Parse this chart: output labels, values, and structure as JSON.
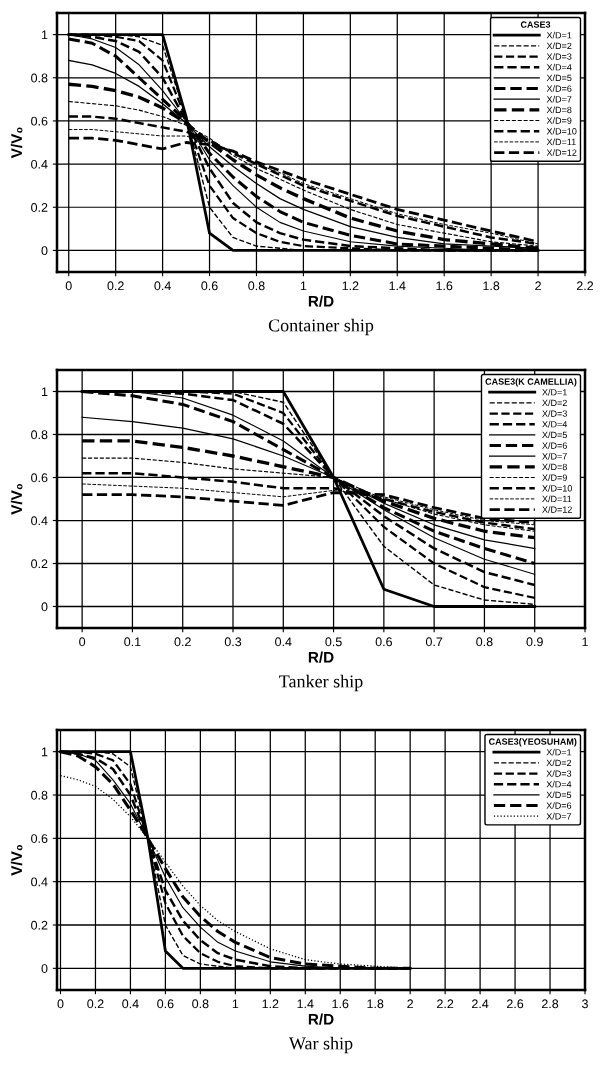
{
  "chart_data": [
    {
      "type": "line",
      "title": "Container ship",
      "xlabel": "R/D",
      "ylabel": "V/V₀",
      "legend_title": "CASE3",
      "legend": "top right",
      "grid": true,
      "x": [
        0,
        0.1,
        0.2,
        0.3,
        0.4,
        0.5,
        0.6,
        0.7,
        0.8,
        0.9,
        1.0,
        1.2,
        1.4,
        1.6,
        1.8,
        2.0
      ],
      "xlim": [
        -0.05,
        2.2
      ],
      "xticks": [
        0,
        {
          "value": 0.2,
          "label": "0.2"
        },
        {
          "value": 0.4,
          "label": "0.4"
        },
        {
          "value": 0.6,
          "label": "0.6"
        },
        {
          "value": 0.8,
          "label": "0.8"
        },
        1,
        {
          "value": 1.2,
          "label": "1.2"
        },
        {
          "value": 1.4,
          "label": "1.4"
        },
        {
          "value": 1.6,
          "label": "1.6"
        },
        {
          "value": 1.8,
          "label": "1.8"
        },
        2,
        {
          "value": 2.2,
          "label": "2.2"
        }
      ],
      "ylim": [
        -0.1,
        1.1
      ],
      "yticks": [
        0,
        {
          "value": 0.2,
          "label": "0.2"
        },
        {
          "value": 0.4,
          "label": "0.4"
        },
        {
          "value": 0.6,
          "label": "0.6"
        },
        {
          "value": 0.8,
          "label": "0.8"
        },
        1
      ],
      "series": [
        {
          "name": "X/D=1",
          "color": "#000000",
          "line_style": "solid",
          "values": [
            1,
            1,
            1,
            1,
            1,
            0.62,
            0.08,
            0,
            0,
            0,
            0,
            0,
            0,
            0,
            0,
            0
          ]
        },
        {
          "name": "X/D=2",
          "color": "#000000",
          "line_style": "dashed",
          "values": [
            1,
            1,
            1,
            0.99,
            0.95,
            0.62,
            0.2,
            0.06,
            0.02,
            0.01,
            0,
            0,
            0,
            0,
            0,
            0
          ]
        },
        {
          "name": "X/D=3",
          "color": "#000000",
          "line_style": "dashed",
          "values": [
            1,
            1,
            0.99,
            0.97,
            0.88,
            0.61,
            0.3,
            0.15,
            0.08,
            0.04,
            0.02,
            0.01,
            0,
            0,
            0,
            0
          ]
        },
        {
          "name": "X/D=4",
          "color": "#000000",
          "line_style": "dashed",
          "values": [
            1,
            0.99,
            0.97,
            0.92,
            0.8,
            0.6,
            0.38,
            0.22,
            0.13,
            0.08,
            0.05,
            0.02,
            0.01,
            0,
            0,
            0
          ]
        },
        {
          "name": "X/D=5",
          "color": "#000000",
          "line_style": "solid",
          "values": [
            1,
            0.98,
            0.94,
            0.86,
            0.74,
            0.6,
            0.42,
            0.3,
            0.2,
            0.13,
            0.09,
            0.04,
            0.02,
            0.01,
            0,
            0
          ]
        },
        {
          "name": "X/D=6",
          "color": "#000000",
          "line_style": "dashed",
          "values": [
            0.98,
            0.96,
            0.9,
            0.8,
            0.7,
            0.6,
            0.45,
            0.34,
            0.25,
            0.18,
            0.13,
            0.07,
            0.03,
            0.02,
            0.01,
            0
          ]
        },
        {
          "name": "X/D=7",
          "color": "#000000",
          "line_style": "solid",
          "values": [
            0.88,
            0.86,
            0.82,
            0.76,
            0.68,
            0.59,
            0.48,
            0.39,
            0.31,
            0.24,
            0.19,
            0.11,
            0.06,
            0.03,
            0.02,
            0.01
          ]
        },
        {
          "name": "X/D=8",
          "color": "#000000",
          "line_style": "dashed",
          "values": [
            0.77,
            0.76,
            0.74,
            0.71,
            0.66,
            0.59,
            0.5,
            0.42,
            0.35,
            0.29,
            0.24,
            0.15,
            0.09,
            0.05,
            0.03,
            0.01
          ]
        },
        {
          "name": "X/D=9",
          "color": "#000000",
          "line_style": "dashed",
          "values": [
            0.69,
            0.68,
            0.67,
            0.65,
            0.62,
            0.58,
            0.52,
            0.44,
            0.38,
            0.33,
            0.28,
            0.19,
            0.12,
            0.08,
            0.04,
            0.02
          ]
        },
        {
          "name": "X/D=10",
          "color": "#000000",
          "line_style": "dashed",
          "values": [
            0.62,
            0.62,
            0.61,
            0.59,
            0.57,
            0.55,
            0.51,
            0.45,
            0.4,
            0.35,
            0.3,
            0.23,
            0.16,
            0.11,
            0.06,
            0.03
          ]
        },
        {
          "name": "X/D=11",
          "color": "#000000",
          "line_style": "dashed",
          "values": [
            0.56,
            0.56,
            0.55,
            0.54,
            0.53,
            0.53,
            0.5,
            0.46,
            0.4,
            0.36,
            0.31,
            0.24,
            0.17,
            0.12,
            0.08,
            0.03
          ]
        },
        {
          "name": "X/D=12",
          "color": "#000000",
          "line_style": "dashed",
          "values": [
            0.52,
            0.52,
            0.51,
            0.49,
            0.47,
            0.5,
            0.49,
            0.46,
            0.41,
            0.37,
            0.33,
            0.26,
            0.19,
            0.14,
            0.09,
            0.04
          ]
        }
      ]
    },
    {
      "type": "line",
      "title": "Tanker ship",
      "xlabel": "R/D",
      "ylabel": "V/V₀",
      "legend_title": "CASE3(K CAMELLIA)",
      "legend": "top right",
      "grid": true,
      "x": [
        0,
        0.1,
        0.2,
        0.3,
        0.4,
        0.5,
        0.6,
        0.7,
        0.8,
        0.9
      ],
      "xlim": [
        -0.05,
        1.0
      ],
      "xticks": [
        0,
        {
          "value": 0.1,
          "label": "0.1"
        },
        {
          "value": 0.2,
          "label": "0.2"
        },
        {
          "value": 0.3,
          "label": "0.3"
        },
        {
          "value": 0.4,
          "label": "0.4"
        },
        {
          "value": 0.5,
          "label": "0.5"
        },
        {
          "value": 0.6,
          "label": "0.6"
        },
        {
          "value": 0.7,
          "label": "0.7"
        },
        {
          "value": 0.8,
          "label": "0.8"
        },
        {
          "value": 0.9,
          "label": "0.9"
        },
        1
      ],
      "ylim": [
        -0.1,
        1.1
      ],
      "yticks": [
        0,
        {
          "value": 0.2,
          "label": "0.2"
        },
        {
          "value": 0.4,
          "label": "0.4"
        },
        {
          "value": 0.6,
          "label": "0.6"
        },
        {
          "value": 0.8,
          "label": "0.8"
        },
        1
      ],
      "series": [
        {
          "name": "X/D=1",
          "color": "#000000",
          "line_style": "solid",
          "values": [
            1,
            1,
            1,
            1,
            1,
            0.6,
            0.08,
            0,
            0,
            0
          ]
        },
        {
          "name": "X/D=2",
          "color": "#000000",
          "line_style": "dashed",
          "values": [
            1,
            1,
            1,
            1,
            0.95,
            0.6,
            0.28,
            0.1,
            0.03,
            0.01
          ]
        },
        {
          "name": "X/D=3",
          "color": "#000000",
          "line_style": "dashed",
          "values": [
            1,
            1,
            1,
            0.99,
            0.9,
            0.6,
            0.37,
            0.2,
            0.09,
            0.04
          ]
        },
        {
          "name": "X/D=4",
          "color": "#000000",
          "line_style": "dashed",
          "values": [
            1,
            1,
            0.99,
            0.96,
            0.85,
            0.6,
            0.42,
            0.27,
            0.16,
            0.1
          ]
        },
        {
          "name": "X/D=5",
          "color": "#000000",
          "line_style": "solid",
          "values": [
            1,
            1,
            0.97,
            0.89,
            0.77,
            0.6,
            0.45,
            0.32,
            0.22,
            0.15
          ]
        },
        {
          "name": "X/D=6",
          "color": "#000000",
          "line_style": "dashed",
          "values": [
            1,
            0.98,
            0.94,
            0.86,
            0.73,
            0.6,
            0.46,
            0.35,
            0.27,
            0.2
          ]
        },
        {
          "name": "X/D=7",
          "color": "#000000",
          "line_style": "solid",
          "values": [
            0.88,
            0.86,
            0.83,
            0.78,
            0.7,
            0.6,
            0.48,
            0.38,
            0.31,
            0.27
          ]
        },
        {
          "name": "X/D=8",
          "color": "#000000",
          "line_style": "dashed",
          "values": [
            0.77,
            0.77,
            0.74,
            0.7,
            0.65,
            0.6,
            0.49,
            0.41,
            0.35,
            0.32
          ]
        },
        {
          "name": "X/D=9",
          "color": "#000000",
          "line_style": "dashed",
          "values": [
            0.69,
            0.69,
            0.67,
            0.64,
            0.62,
            0.6,
            0.5,
            0.43,
            0.38,
            0.35
          ]
        },
        {
          "name": "X/D=10",
          "color": "#000000",
          "line_style": "dashed",
          "values": [
            0.62,
            0.62,
            0.6,
            0.58,
            0.55,
            0.55,
            0.5,
            0.44,
            0.39,
            0.36
          ]
        },
        {
          "name": "X/D=11",
          "color": "#000000",
          "line_style": "dashed",
          "values": [
            0.57,
            0.56,
            0.55,
            0.53,
            0.51,
            0.54,
            0.51,
            0.45,
            0.4,
            0.38
          ]
        },
        {
          "name": "X/D=12",
          "color": "#000000",
          "line_style": "dashed",
          "values": [
            0.52,
            0.52,
            0.51,
            0.49,
            0.47,
            0.53,
            0.52,
            0.46,
            0.41,
            0.39
          ]
        }
      ]
    },
    {
      "type": "line",
      "title": "War ship",
      "xlabel": "R/D",
      "ylabel": "V/V₀",
      "legend_title": "CASE3(YEOSUHAM)",
      "legend": "top right",
      "grid": true,
      "x": [
        0,
        0.1,
        0.2,
        0.3,
        0.4,
        0.5,
        0.6,
        0.7,
        0.8,
        0.9,
        1.0,
        1.2,
        1.4,
        1.6,
        1.8,
        2.0
      ],
      "xlim": [
        -0.02,
        3.0
      ],
      "xticks": [
        0,
        {
          "value": 0.2,
          "label": "0.2"
        },
        {
          "value": 0.4,
          "label": "0.4"
        },
        {
          "value": 0.6,
          "label": "0.6"
        },
        {
          "value": 0.8,
          "label": "0.8"
        },
        1,
        {
          "value": 1.2,
          "label": "1.2"
        },
        {
          "value": 1.4,
          "label": "1.4"
        },
        {
          "value": 1.6,
          "label": "1.6"
        },
        {
          "value": 1.8,
          "label": "1.8"
        },
        2,
        {
          "value": 2.2,
          "label": "2.2"
        },
        {
          "value": 2.4,
          "label": "2.4"
        },
        {
          "value": 2.6,
          "label": "2.6"
        },
        {
          "value": 2.8,
          "label": "2.8"
        },
        3
      ],
      "ylim": [
        -0.1,
        1.1
      ],
      "yticks": [
        0,
        {
          "value": 0.2,
          "label": "0.2"
        },
        {
          "value": 0.4,
          "label": "0.4"
        },
        {
          "value": 0.6,
          "label": "0.6"
        },
        {
          "value": 0.8,
          "label": "0.8"
        },
        1
      ],
      "series": [
        {
          "name": "X/D=1",
          "color": "#000000",
          "line_style": "solid",
          "values": [
            1,
            1,
            1,
            1,
            1,
            0.6,
            0.08,
            0,
            0,
            0,
            0,
            0,
            0,
            0,
            0,
            0
          ]
        },
        {
          "name": "X/D=2",
          "color": "#000000",
          "line_style": "dashed",
          "values": [
            1,
            1,
            1,
            0.99,
            0.93,
            0.6,
            0.2,
            0.06,
            0.02,
            0.01,
            0,
            0,
            0,
            0,
            0,
            0
          ]
        },
        {
          "name": "X/D=3",
          "color": "#000000",
          "line_style": "dashed",
          "values": [
            1,
            1,
            0.99,
            0.96,
            0.85,
            0.6,
            0.3,
            0.15,
            0.07,
            0.03,
            0.01,
            0,
            0,
            0,
            0,
            0
          ]
        },
        {
          "name": "X/D=4",
          "color": "#000000",
          "line_style": "dashed",
          "values": [
            1,
            0.99,
            0.97,
            0.92,
            0.8,
            0.6,
            0.36,
            0.22,
            0.13,
            0.07,
            0.04,
            0.01,
            0,
            0,
            0,
            0
          ]
        },
        {
          "name": "X/D=5",
          "color": "#000000",
          "line_style": "solid",
          "values": [
            1,
            0.99,
            0.96,
            0.87,
            0.76,
            0.6,
            0.42,
            0.28,
            0.19,
            0.12,
            0.08,
            0.03,
            0.01,
            0,
            0,
            0
          ]
        },
        {
          "name": "X/D=6",
          "color": "#000000",
          "line_style": "dashed",
          "values": [
            1,
            0.98,
            0.93,
            0.85,
            0.73,
            0.6,
            0.46,
            0.33,
            0.24,
            0.17,
            0.12,
            0.05,
            0.02,
            0.01,
            0,
            0
          ]
        },
        {
          "name": "X/D=7",
          "color": "#000000",
          "line_style": "dotted",
          "values": [
            0.89,
            0.87,
            0.84,
            0.78,
            0.7,
            0.6,
            0.49,
            0.38,
            0.29,
            0.22,
            0.17,
            0.09,
            0.04,
            0.02,
            0.01,
            0
          ]
        }
      ]
    }
  ]
}
